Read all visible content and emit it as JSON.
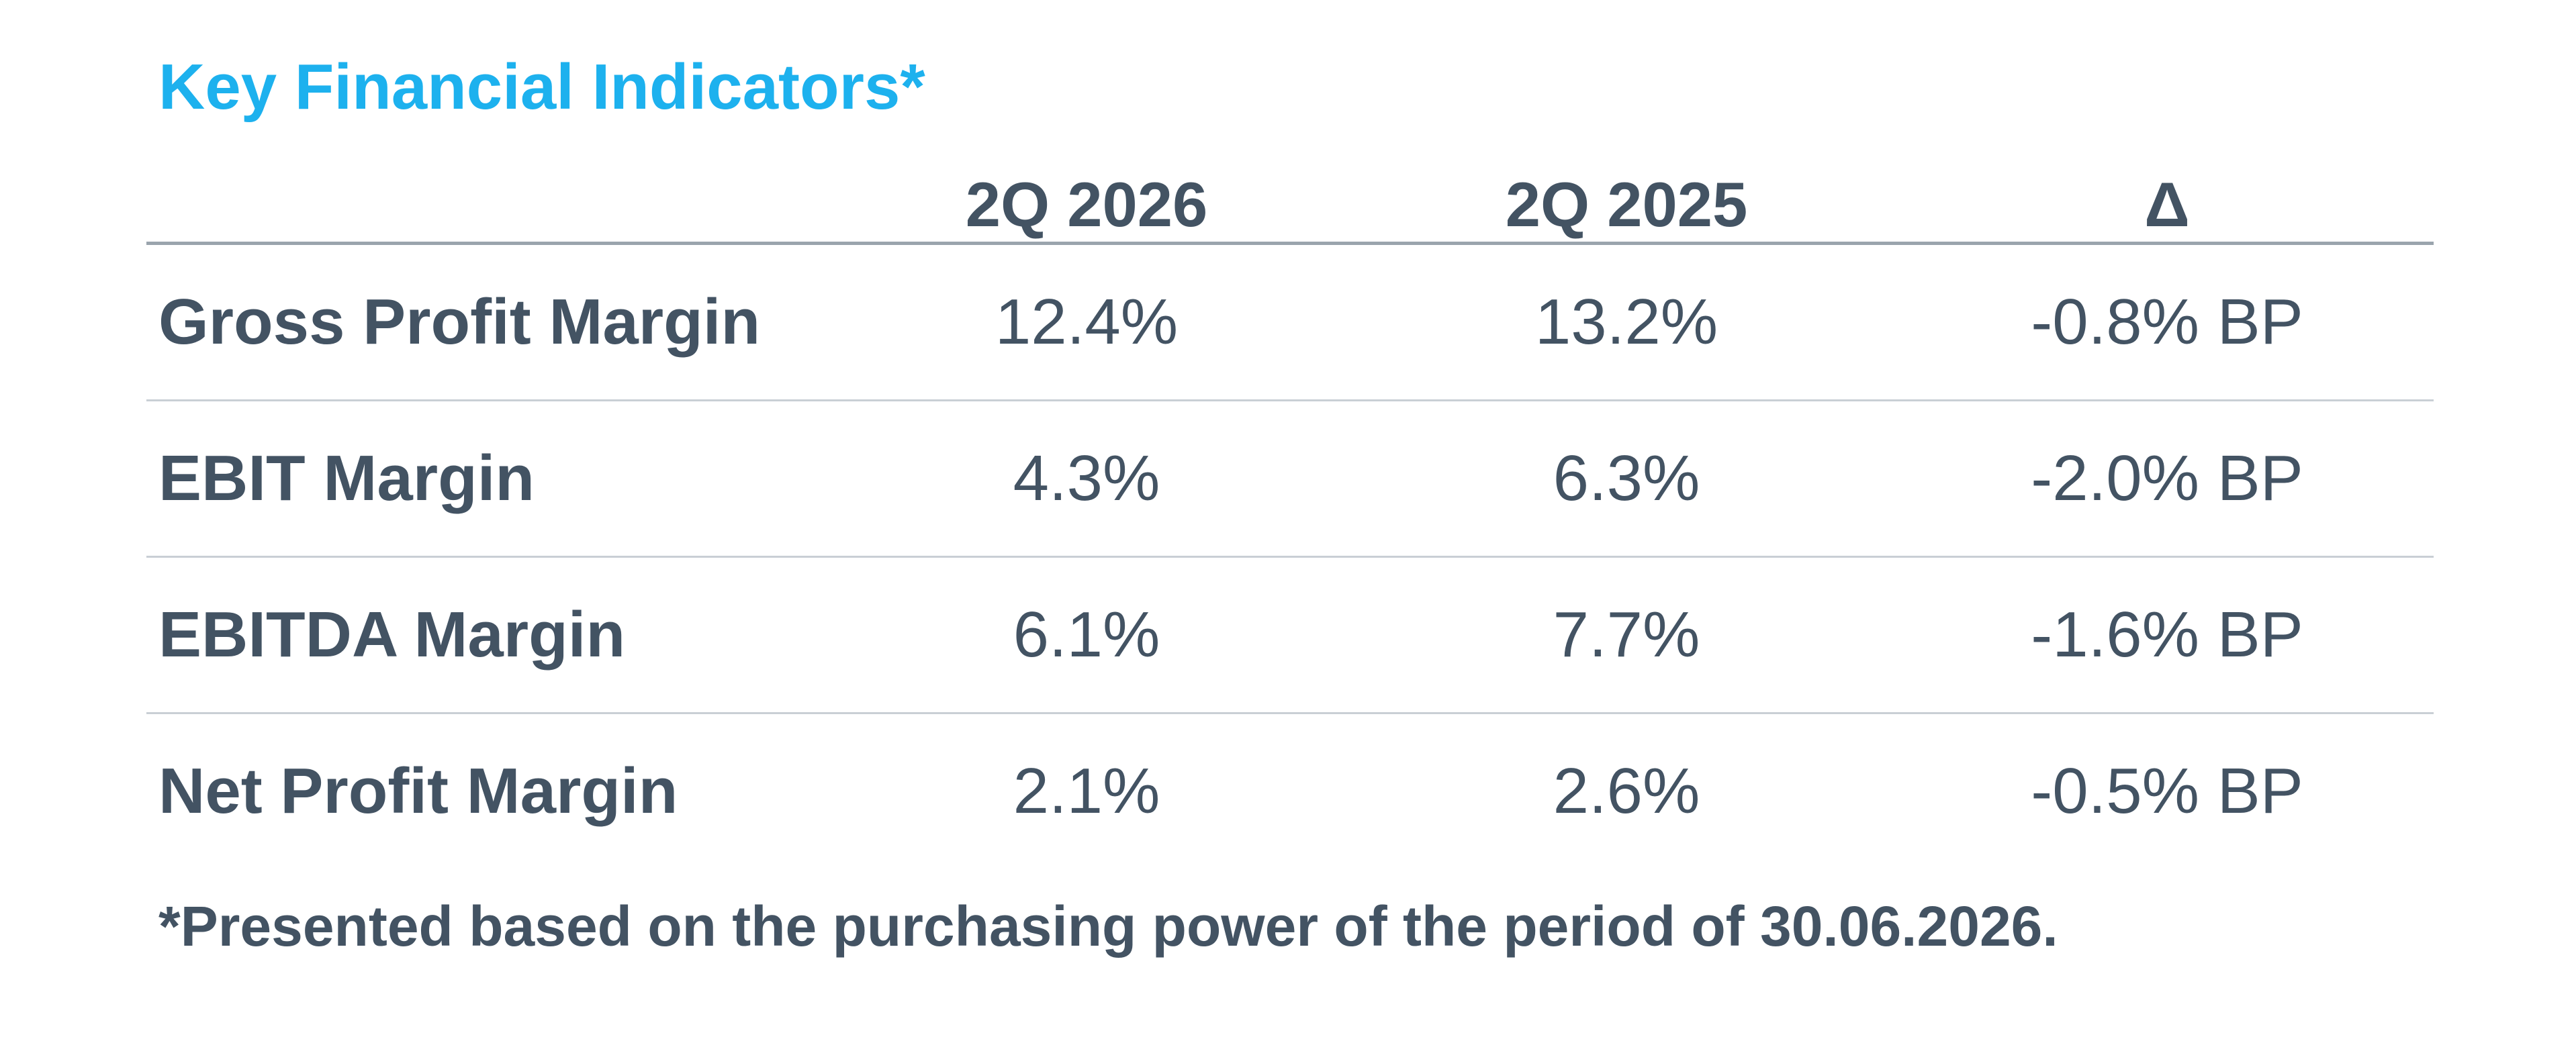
{
  "title": "Key Financial Indicators*",
  "columns": [
    "2Q 2026",
    "2Q 2025",
    "Δ"
  ],
  "rows": [
    {
      "label": "Gross Profit Margin",
      "values": [
        "12.4%",
        "13.2%",
        "-0.8% BP"
      ]
    },
    {
      "label": "EBIT Margin",
      "values": [
        "4.3%",
        "6.3%",
        "-2.0% BP"
      ]
    },
    {
      "label": "EBITDA Margin",
      "values": [
        "6.1%",
        "7.7%",
        "-1.6% BP"
      ]
    },
    {
      "label": "Net Profit Margin",
      "values": [
        "2.1%",
        "2.6%",
        "-0.5% BP"
      ]
    }
  ],
  "footnote": "*Presented based on the purchasing power of the period of 30.06.2026.",
  "colors": {
    "title": "#1db1ee",
    "text": "#435363",
    "header_rule": "#9aa4ad",
    "row_rule": "#c9cfd5"
  }
}
